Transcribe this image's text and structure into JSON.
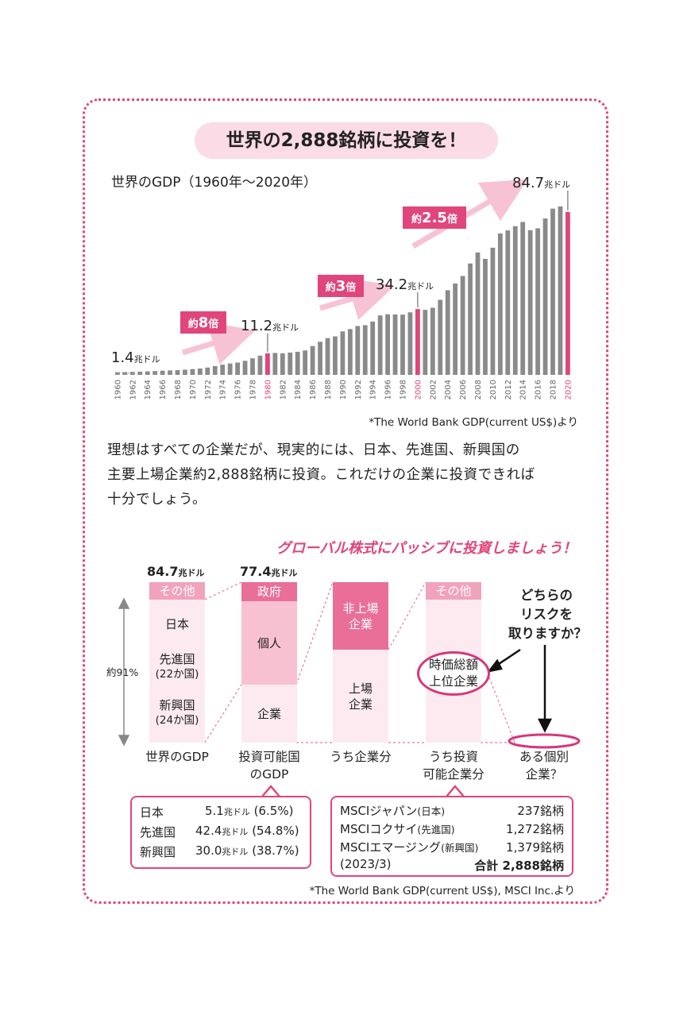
{
  "title": "世界の2,888銘柄に投資を！",
  "chart_data": [
    {
      "type": "bar",
      "title": "世界のGDP（1960年〜2020年）",
      "categories": [
        "1960",
        "1961",
        "1962",
        "1963",
        "1964",
        "1965",
        "1966",
        "1967",
        "1968",
        "1969",
        "1970",
        "1971",
        "1972",
        "1973",
        "1974",
        "1975",
        "1976",
        "1977",
        "1978",
        "1979",
        "1980",
        "1981",
        "1982",
        "1983",
        "1984",
        "1985",
        "1986",
        "1987",
        "1988",
        "1989",
        "1990",
        "1991",
        "1992",
        "1993",
        "1994",
        "1995",
        "1996",
        "1997",
        "1998",
        "1999",
        "2000",
        "2001",
        "2002",
        "2003",
        "2004",
        "2005",
        "2006",
        "2007",
        "2008",
        "2009",
        "2010",
        "2011",
        "2012",
        "2013",
        "2014",
        "2015",
        "2016",
        "2017",
        "2018",
        "2019",
        "2020"
      ],
      "values": [
        1.4,
        1.45,
        1.55,
        1.67,
        1.82,
        1.98,
        2.15,
        2.3,
        2.46,
        2.72,
        3.0,
        3.3,
        3.8,
        4.6,
        5.3,
        5.9,
        6.4,
        7.3,
        8.6,
        10.0,
        11.2,
        11.4,
        11.2,
        11.6,
        12.0,
        12.7,
        15.0,
        17.2,
        19.1,
        20.0,
        22.6,
        23.8,
        25.4,
        25.8,
        27.7,
        30.9,
        31.5,
        31.4,
        31.3,
        32.5,
        34.2,
        33.8,
        34.9,
        39.0,
        44.0,
        47.5,
        51.4,
        57.9,
        63.6,
        60.3,
        66.1,
        73.5,
        75.1,
        77.3,
        79.5,
        75.2,
        76.2,
        81.3,
        86.4,
        87.6,
        84.7
      ],
      "highlight_categories": [
        "1980",
        "2000",
        "2020"
      ],
      "xtick_labels": [
        "1960",
        "1962",
        "1964",
        "1966",
        "1968",
        "1970",
        "1972",
        "1974",
        "1976",
        "1978",
        "1980",
        "1982",
        "1984",
        "1986",
        "1988",
        "1990",
        "1992",
        "1994",
        "1996",
        "1998",
        "2000",
        "2002",
        "2004",
        "2006",
        "2008",
        "2010",
        "2012",
        "2014",
        "2016",
        "2018",
        "2020"
      ],
      "annotations": [
        {
          "year": "1960",
          "value": "1.4",
          "unit": "兆ドル"
        },
        {
          "year": "1980",
          "value": "11.2",
          "unit": "兆ドル"
        },
        {
          "year": "2000",
          "value": "34.2",
          "unit": "兆ドル"
        },
        {
          "year": "2020",
          "value": "84.7",
          "unit": "兆ドル"
        }
      ],
      "growth_labels": [
        {
          "pre": "約",
          "num": "8",
          "post": "倍"
        },
        {
          "pre": "約",
          "num": "3",
          "post": "倍"
        },
        {
          "pre": "約",
          "num": "2.5",
          "post": "倍"
        }
      ],
      "source": "*The World Bank GDP(current US$)より",
      "colors": {
        "bar": "#8a8a8a",
        "highlight": "#e0457b",
        "tick": "#666666",
        "tick_highlight": "#e0457b",
        "arrow": "#f7c3d4"
      }
    },
    {
      "type": "table",
      "title": "グローバル株式にパッシブに投資しましょう！",
      "columns": [
        {
          "top_value": "84.7",
          "top_unit": "兆ドル",
          "caption": "世界のGDP",
          "segments": [
            "その他",
            "日本",
            "先進国",
            "(22か国)",
            "新興国",
            "(24か国)"
          ]
        },
        {
          "top_value": "77.4",
          "top_unit": "兆ドル",
          "caption": "投資可能国のGDP",
          "segments": [
            "政府",
            "個人",
            "企業"
          ]
        },
        {
          "caption": "うち企業分",
          "segments": [
            "非上場企業",
            "上場企業"
          ]
        },
        {
          "caption": "うち投資可能企業分",
          "segments": [
            "その他"
          ]
        },
        {
          "caption": "ある個別企業？"
        }
      ],
      "side_label": "約91%",
      "callout": "時価総額上位企業",
      "question": "どちらのリスクを取りますか？"
    }
  ],
  "text": {
    "para_lines": [
      "理想はすべての企業だが、現実的には、日本、先進国、新興国の",
      "主要上場企業約2,888銘柄に投資。これだけの企業に投資できれば",
      "十分でしょう。"
    ],
    "cap_gdp": "世界のGDP",
    "cap_inv1": "投資可能国",
    "cap_inv2": "のGDP",
    "cap_corp": "うち企業分",
    "cap_ic1": "うち投資",
    "cap_ic2": "可能企業分",
    "cap_ind1": "ある個別",
    "cap_ind2": "企業？",
    "seg_other": "その他",
    "seg_japan": "日本",
    "seg_dev": "先進国",
    "seg_dev_n": "(22か国)",
    "seg_em": "新興国",
    "seg_em_n": "(24か国)",
    "seg_gov": "政府",
    "seg_ind": "個人",
    "seg_corp": "企業",
    "seg_unl1": "非上場",
    "seg_unl2": "企業",
    "seg_lst1": "上場",
    "seg_lst2": "企業",
    "seg_other2": "その他",
    "top1_v": "84.7",
    "top1_u": "兆ドル",
    "top2_v": "77.4",
    "top2_u": "兆ドル",
    "side": "約91%",
    "callout1": "時価総額",
    "callout2": "上位企業",
    "q1": "どちらの",
    "q2": "リスクを",
    "q3": "取りますか？"
  },
  "gdp_table": [
    {
      "label": "日本",
      "value": "5.1",
      "unit": "兆ドル",
      "pct": "(6.5%)"
    },
    {
      "label": "先進国",
      "value": "42.4",
      "unit": "兆ドル",
      "pct": "(54.8%)"
    },
    {
      "label": "新興国",
      "value": "30.0",
      "unit": "兆ドル",
      "pct": "(38.7%)"
    }
  ],
  "msci_table": [
    {
      "name": "MSCIジャパン",
      "region": "(日本)",
      "count": "237銘柄"
    },
    {
      "name": "MSCIコクサイ",
      "region": "(先進国)",
      "count": "1,272銘柄"
    },
    {
      "name": "MSCIエマージング",
      "region": "(新興国)",
      "count": "1,379銘柄"
    }
  ],
  "msci_date": "(2023/3)",
  "msci_total_label": "合計",
  "msci_total": "2,888銘柄",
  "source2": "*The World Bank GDP(current US$), MSCI Inc.より"
}
